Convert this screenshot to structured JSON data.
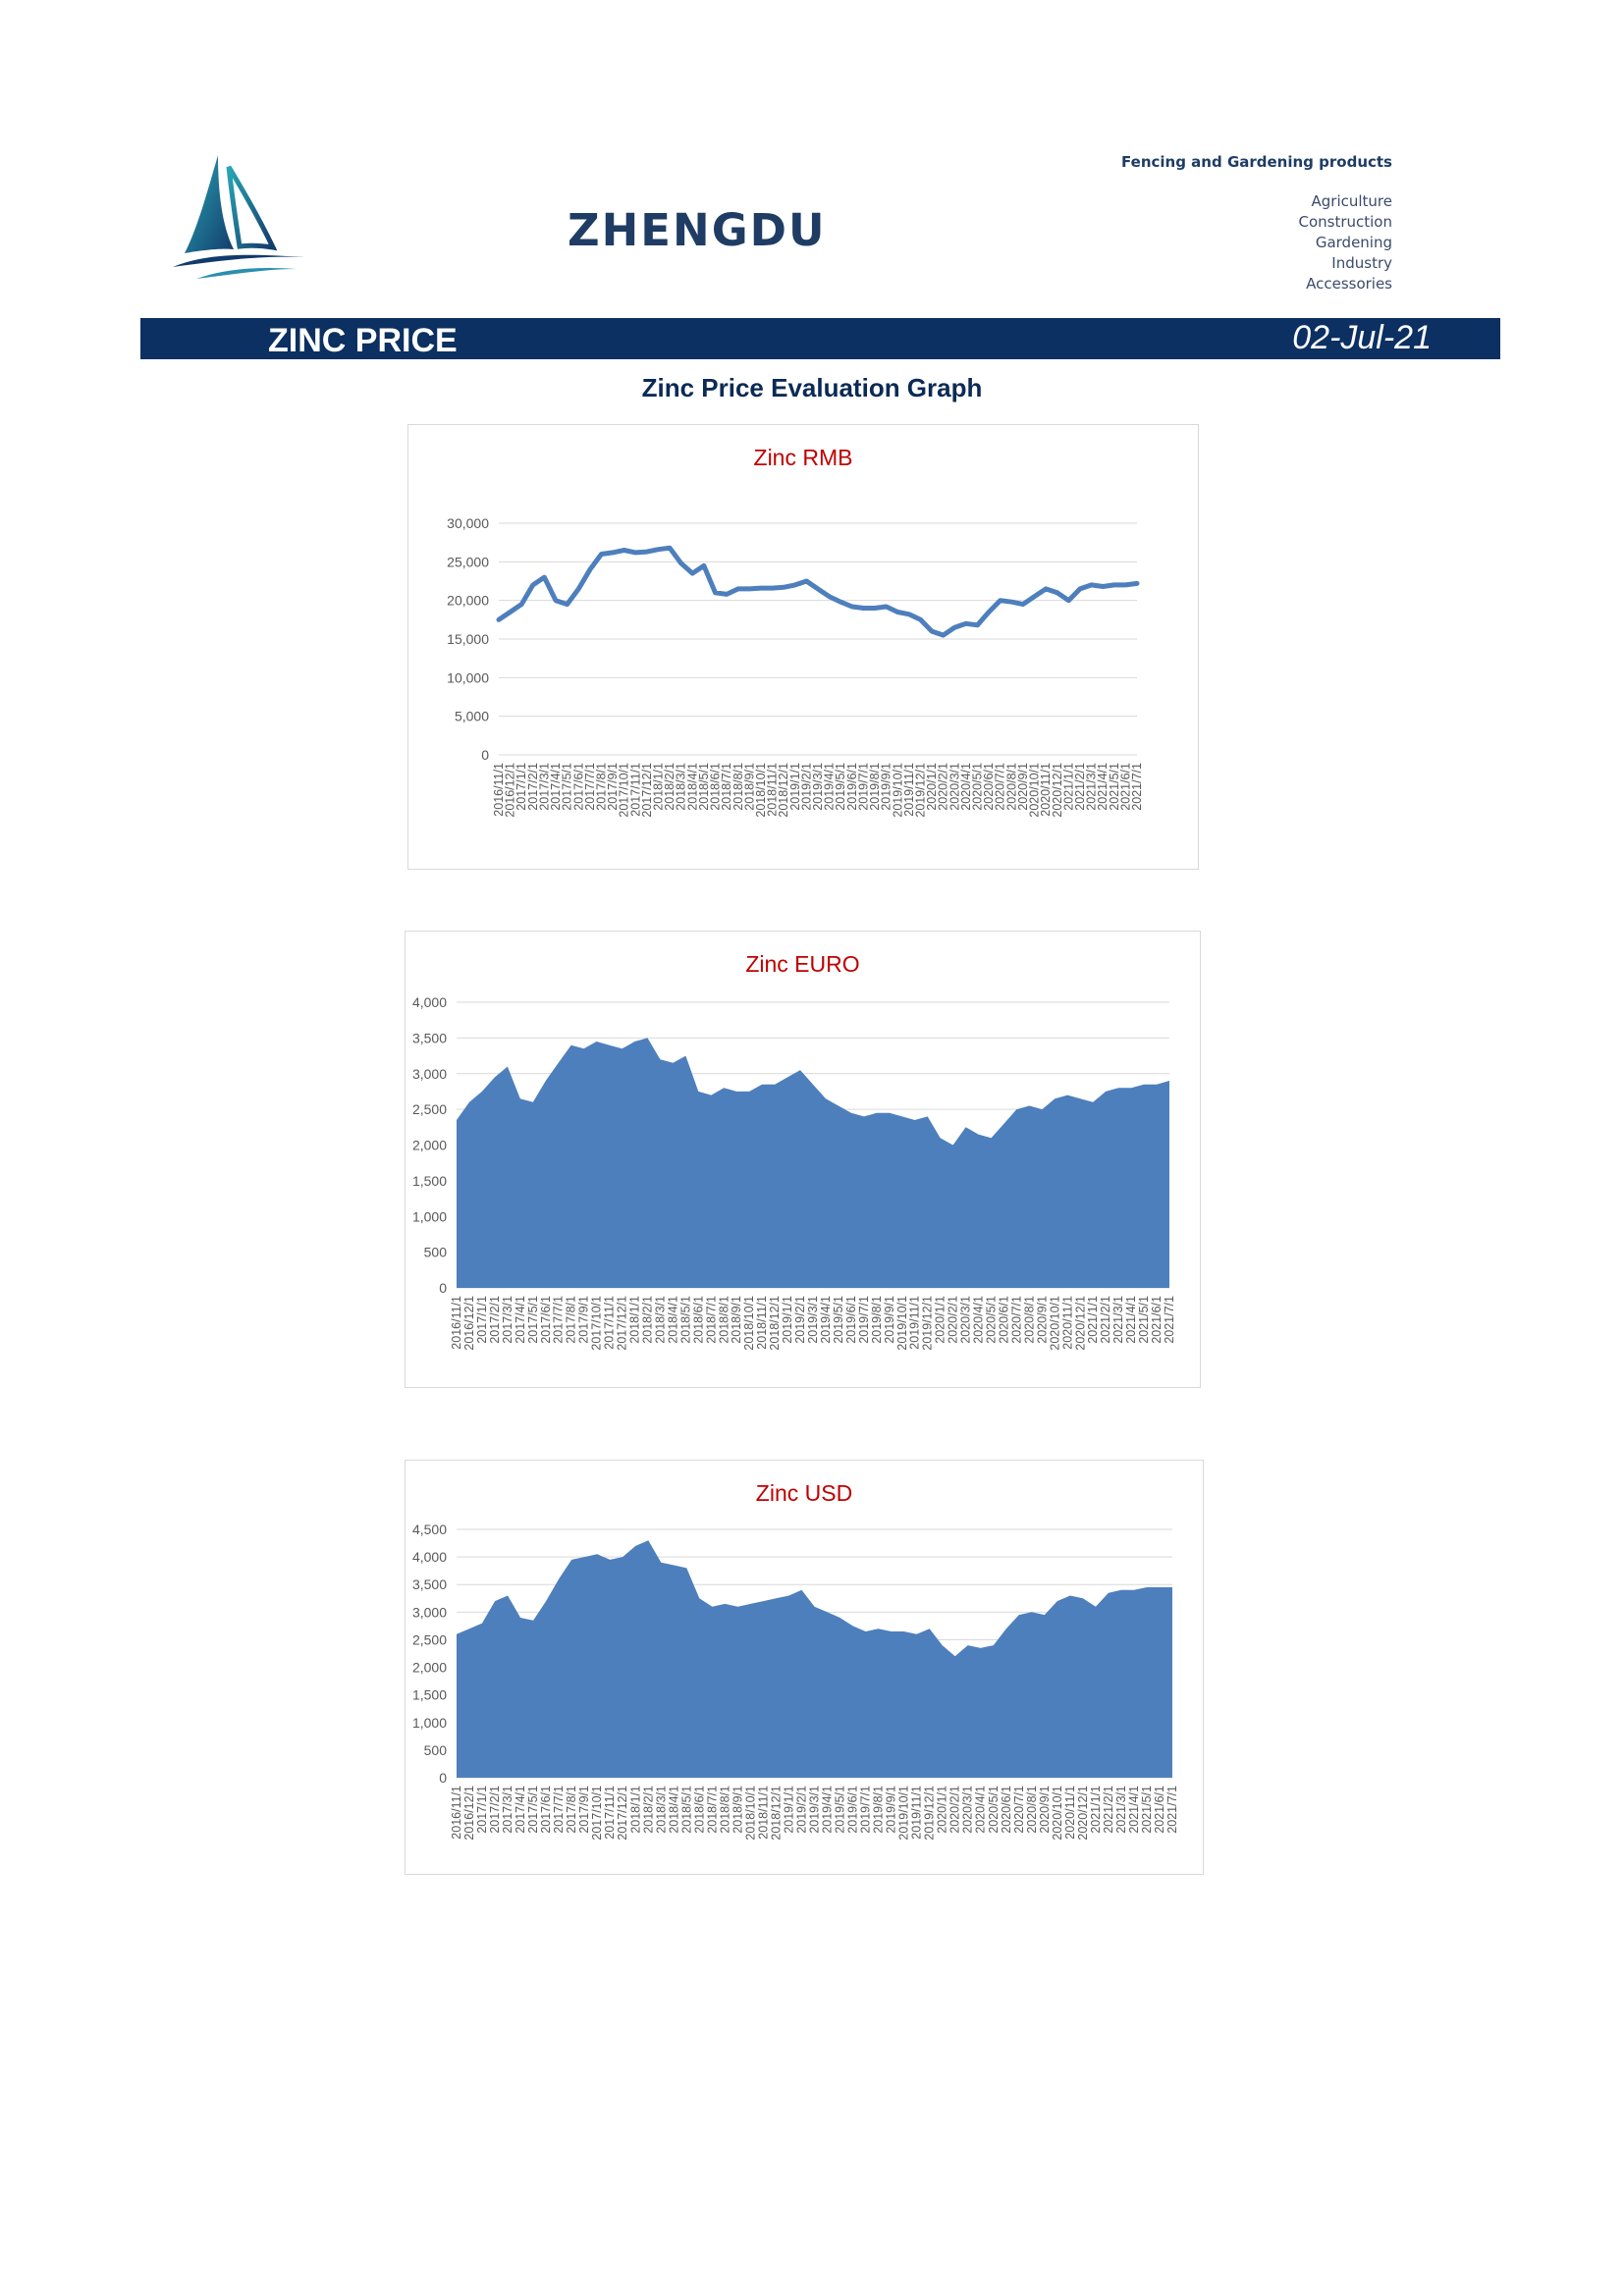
{
  "header": {
    "brand": "ZHENGDU",
    "tagline": "Fencing and Gardening products",
    "categories": [
      "Agriculture",
      "Construction",
      "Gardening",
      "Industry",
      "Accessories"
    ]
  },
  "banner": {
    "title": "ZINC PRICE",
    "date": "02-Jul-21",
    "color": "#0b3061"
  },
  "page_title": "Zinc Price Evaluation Graph",
  "chart_data": [
    {
      "type": "line",
      "title": "Zinc RMB",
      "color": "#4e7fbd",
      "x": [
        "2016/11/1",
        "2016/12/1",
        "2017/1/1",
        "2017/2/1",
        "2017/3/1",
        "2017/4/1",
        "2017/5/1",
        "2017/6/1",
        "2017/7/1",
        "2017/8/1",
        "2017/9/1",
        "2017/10/1",
        "2017/11/1",
        "2017/12/1",
        "2018/1/1",
        "2018/2/1",
        "2018/3/1",
        "2018/4/1",
        "2018/5/1",
        "2018/6/1",
        "2018/7/1",
        "2018/8/1",
        "2018/9/1",
        "2018/10/1",
        "2018/11/1",
        "2018/12/1",
        "2019/1/1",
        "2019/2/1",
        "2019/3/1",
        "2019/4/1",
        "2019/5/1",
        "2019/6/1",
        "2019/7/1",
        "2019/8/1",
        "2019/9/1",
        "2019/10/1",
        "2019/11/1",
        "2019/12/1",
        "2020/1/1",
        "2020/2/1",
        "2020/3/1",
        "2020/4/1",
        "2020/5/1",
        "2020/6/1",
        "2020/7/1",
        "2020/8/1",
        "2020/9/1",
        "2020/10/1",
        "2020/11/1",
        "2020/12/1",
        "2021/1/1",
        "2021/2/1",
        "2021/3/1",
        "2021/4/1",
        "2021/5/1",
        "2021/6/1",
        "2021/7/1"
      ],
      "values": [
        17500,
        18500,
        19500,
        22000,
        23000,
        20000,
        19500,
        21500,
        24000,
        26000,
        26200,
        26500,
        26200,
        26300,
        26600,
        26800,
        24800,
        23500,
        24500,
        21000,
        20800,
        21500,
        21500,
        21600,
        21600,
        21700,
        22000,
        22500,
        21500,
        20500,
        19800,
        19200,
        19000,
        19000,
        19200,
        18500,
        18200,
        17500,
        16000,
        15500,
        16500,
        17000,
        16800,
        18500,
        20000,
        19800,
        19500,
        20500,
        21500,
        21000,
        20000,
        21500,
        22000,
        21800,
        22000,
        22000,
        22200
      ],
      "ylim": [
        0,
        30000
      ],
      "yticks": [
        "0",
        "5,000",
        "10,000",
        "15,000",
        "20,000",
        "25,000",
        "30,000"
      ],
      "grid": true
    },
    {
      "type": "area",
      "title": "Zinc EURO",
      "color": "#4e7fbd",
      "x": [
        "2016/11/1",
        "2016/12/1",
        "2017/1/1",
        "2017/2/1",
        "2017/3/1",
        "2017/4/1",
        "2017/5/1",
        "2017/6/1",
        "2017/7/1",
        "2017/8/1",
        "2017/9/1",
        "2017/10/1",
        "2017/11/1",
        "2017/12/1",
        "2018/1/1",
        "2018/2/1",
        "2018/3/1",
        "2018/4/1",
        "2018/5/1",
        "2018/6/1",
        "2018/7/1",
        "2018/8/1",
        "2018/9/1",
        "2018/10/1",
        "2018/11/1",
        "2018/12/1",
        "2019/1/1",
        "2019/2/1",
        "2019/3/1",
        "2019/4/1",
        "2019/5/1",
        "2019/6/1",
        "2019/7/1",
        "2019/8/1",
        "2019/9/1",
        "2019/10/1",
        "2019/11/1",
        "2019/12/1",
        "2020/1/1",
        "2020/2/1",
        "2020/3/1",
        "2020/4/1",
        "2020/5/1",
        "2020/6/1",
        "2020/7/1",
        "2020/8/1",
        "2020/9/1",
        "2020/10/1",
        "2020/11/1",
        "2020/12/1",
        "2021/1/1",
        "2021/2/1",
        "2021/3/1",
        "2021/4/1",
        "2021/5/1",
        "2021/6/1",
        "2021/7/1"
      ],
      "values": [
        2350,
        2600,
        2750,
        2950,
        3100,
        2650,
        2600,
        2900,
        3150,
        3400,
        3350,
        3450,
        3400,
        3350,
        3450,
        3500,
        3200,
        3150,
        3250,
        2750,
        2700,
        2800,
        2750,
        2750,
        2850,
        2850,
        2950,
        3050,
        2850,
        2650,
        2550,
        2450,
        2400,
        2450,
        2450,
        2400,
        2350,
        2400,
        2100,
        2000,
        2250,
        2150,
        2100,
        2300,
        2500,
        2550,
        2500,
        2650,
        2700,
        2650,
        2600,
        2750,
        2800,
        2800,
        2850,
        2850,
        2900
      ],
      "ylim": [
        0,
        4000
      ],
      "yticks": [
        "0",
        "500",
        "1,000",
        "1,500",
        "2,000",
        "2,500",
        "3,000",
        "3,500",
        "4,000"
      ],
      "grid": true
    },
    {
      "type": "area",
      "title": "Zinc USD",
      "color": "#4e7fbd",
      "x": [
        "2016/11/1",
        "2016/12/1",
        "2017/1/1",
        "2017/2/1",
        "2017/3/1",
        "2017/4/1",
        "2017/5/1",
        "2017/6/1",
        "2017/7/1",
        "2017/8/1",
        "2017/9/1",
        "2017/10/1",
        "2017/11/1",
        "2017/12/1",
        "2018/1/1",
        "2018/2/1",
        "2018/3/1",
        "2018/4/1",
        "2018/5/1",
        "2018/6/1",
        "2018/7/1",
        "2018/8/1",
        "2018/9/1",
        "2018/10/1",
        "2018/11/1",
        "2018/12/1",
        "2019/1/1",
        "2019/2/1",
        "2019/3/1",
        "2019/4/1",
        "2019/5/1",
        "2019/6/1",
        "2019/7/1",
        "2019/8/1",
        "2019/9/1",
        "2019/10/1",
        "2019/11/1",
        "2019/12/1",
        "2020/1/1",
        "2020/2/1",
        "2020/3/1",
        "2020/4/1",
        "2020/5/1",
        "2020/6/1",
        "2020/7/1",
        "2020/8/1",
        "2020/9/1",
        "2020/10/1",
        "2020/11/1",
        "2020/12/1",
        "2021/1/1",
        "2021/2/1",
        "2021/3/1",
        "2021/4/1",
        "2021/5/1",
        "2021/6/1",
        "2021/7/1"
      ],
      "values": [
        2600,
        2700,
        2800,
        3200,
        3300,
        2900,
        2850,
        3200,
        3600,
        3950,
        4000,
        4050,
        3950,
        4000,
        4200,
        4300,
        3900,
        3850,
        3800,
        3250,
        3100,
        3150,
        3100,
        3150,
        3200,
        3250,
        3300,
        3400,
        3100,
        3000,
        2900,
        2750,
        2650,
        2700,
        2650,
        2650,
        2600,
        2700,
        2400,
        2200,
        2400,
        2350,
        2400,
        2700,
        2950,
        3000,
        2950,
        3200,
        3300,
        3250,
        3100,
        3350,
        3400,
        3400,
        3450,
        3450,
        3450
      ],
      "ylim": [
        0,
        4500
      ],
      "yticks": [
        "0",
        "500",
        "1,000",
        "1,500",
        "2,000",
        "2,500",
        "3,000",
        "3,500",
        "4,000",
        "4,500"
      ],
      "grid": true
    }
  ]
}
